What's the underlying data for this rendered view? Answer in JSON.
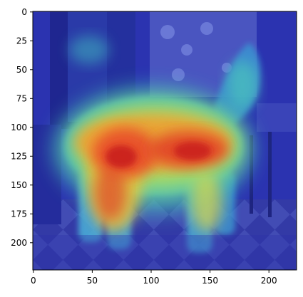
{
  "figure": {
    "title": "",
    "image_description": "Grad-CAM style heatmap (jet colormap) overlaid on a photo of a long-haired dog standing on a patterned floor",
    "x_axis": {
      "range": [
        0,
        224
      ],
      "ticks": [
        "0",
        "50",
        "100",
        "150",
        "200"
      ]
    },
    "y_axis": {
      "range": [
        0,
        224
      ],
      "ticks": [
        "0",
        "25",
        "50",
        "75",
        "100",
        "125",
        "150",
        "175",
        "200"
      ]
    },
    "colormap": "jet",
    "colors": {
      "low": "#2a2fb8",
      "mid": "#48c8b0",
      "high": "#e82a20",
      "frame": "#000000"
    }
  }
}
